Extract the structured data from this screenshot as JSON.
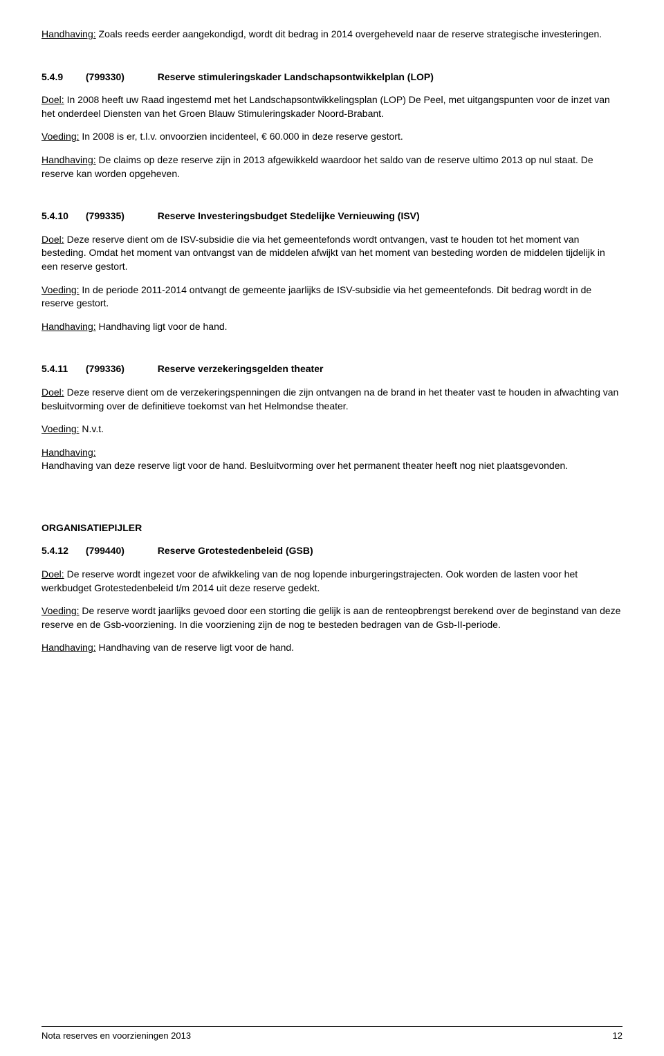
{
  "intro_para": {
    "label": "Handhaving:",
    "text": " Zoals reeds eerder aangekondigd, wordt dit bedrag in 2014 overgeheveld naar de reserve strategische investeringen."
  },
  "sections": [
    {
      "num": "5.4.9",
      "code": "(799330)",
      "title": "Reserve stimuleringskader Landschapsontwikkelplan (LOP)",
      "doel_label": "Doel:",
      "doel_text": " In 2008 heeft uw Raad ingestemd met het Landschapsontwikkelingsplan (LOP) De Peel, met uitgangspunten voor de inzet van het onderdeel Diensten van het Groen Blauw Stimuleringskader Noord-Brabant.",
      "voeding_label": "Voeding:",
      "voeding_text": " In 2008 is er, t.l.v. onvoorzien incidenteel, € 60.000 in deze reserve gestort.",
      "handhaving_label": "Handhaving:",
      "handhaving_text": " De claims op deze reserve zijn in 2013 afgewikkeld waardoor het saldo van de reserve ultimo 2013 op nul staat. De reserve kan worden opgeheven."
    },
    {
      "num": "5.4.10",
      "code": "(799335)",
      "title": "Reserve Investeringsbudget Stedelijke Vernieuwing (ISV)",
      "doel_label": "Doel:",
      "doel_text": " Deze reserve dient om de ISV-subsidie die via het gemeentefonds wordt ontvangen, vast te houden tot het moment van besteding. Omdat het moment van ontvangst van de middelen afwijkt van het moment van besteding worden de middelen tijdelijk in een reserve gestort.",
      "voeding_label": "Voeding:",
      "voeding_text": " In de periode 2011-2014 ontvangt de gemeente jaarlijks de ISV-subsidie via het gemeentefonds. Dit bedrag wordt in de reserve gestort.",
      "handhaving_label": "Handhaving:",
      "handhaving_text": " Handhaving ligt voor de hand."
    },
    {
      "num": "5.4.11",
      "code": "(799336)",
      "title": "Reserve verzekeringsgelden theater",
      "doel_label": "Doel:",
      "doel_text": " Deze reserve dient om de verzekeringspenningen die zijn ontvangen na de brand in het theater vast te houden in afwachting van besluitvorming over de definitieve toekomst van het Helmondse theater.",
      "voeding_label": "Voeding:",
      "voeding_text": " N.v.t.",
      "handhaving_label": "Handhaving:",
      "handhaving_text": "",
      "handhaving_extra": "Handhaving van deze reserve ligt voor de hand. Besluitvorming over het permanent theater heeft nog niet plaatsgevonden."
    }
  ],
  "pillar_heading": "ORGANISATIEPIJLER",
  "section4": {
    "num": "5.4.12",
    "code": "(799440)",
    "title": "Reserve Grotestedenbeleid (GSB)",
    "doel_label": "Doel:",
    "doel_text": " De reserve wordt ingezet voor de afwikkeling van de nog lopende inburgeringstrajecten. Ook worden de lasten voor het werkbudget Grotestedenbeleid t/m 2014 uit deze reserve gedekt.",
    "voeding_label": "Voeding:",
    "voeding_text": " De reserve wordt jaarlijks gevoed door een storting die gelijk is aan de renteopbrengst berekend over de beginstand van deze reserve en de Gsb-voorziening. In die voorziening zijn de nog te besteden bedragen van de Gsb-II-periode.",
    "handhaving_label": "Handhaving:",
    "handhaving_text": " Handhaving van de reserve ligt voor de hand."
  },
  "footer_title": "Nota reserves en voorzieningen 2013",
  "footer_page": "12"
}
